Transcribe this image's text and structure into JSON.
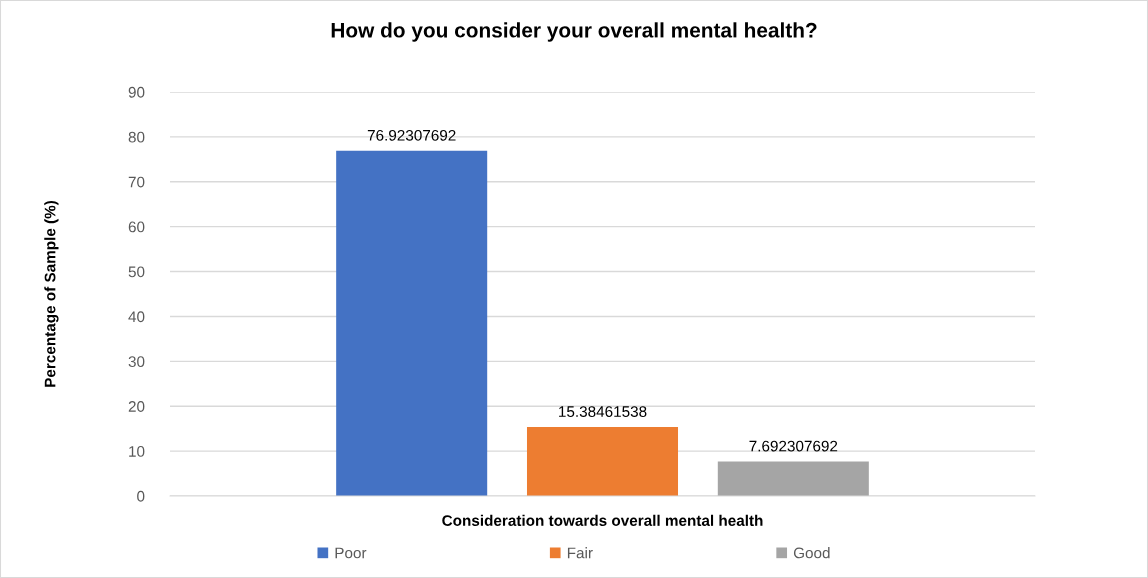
{
  "chart_data": {
    "type": "bar",
    "title": "How do you consider your overall mental health?",
    "xlabel": "Consideration towards overall mental health",
    "ylabel": "Percentage of Sample (%)",
    "categories": [
      null
    ],
    "series": [
      {
        "name": "Poor",
        "color": "#4472c4",
        "values": [
          76.92307692
        ]
      },
      {
        "name": "Fair",
        "color": "#ed7d31",
        "values": [
          15.38461538
        ]
      },
      {
        "name": "Good",
        "color": "#a5a5a5",
        "values": [
          7.692307692
        ]
      }
    ],
    "ylim": [
      0,
      90
    ],
    "yticks": [
      0,
      10,
      20,
      30,
      40,
      50,
      60,
      70,
      80,
      90
    ],
    "grid": "y",
    "legend": "bottom",
    "data_labels": true
  }
}
